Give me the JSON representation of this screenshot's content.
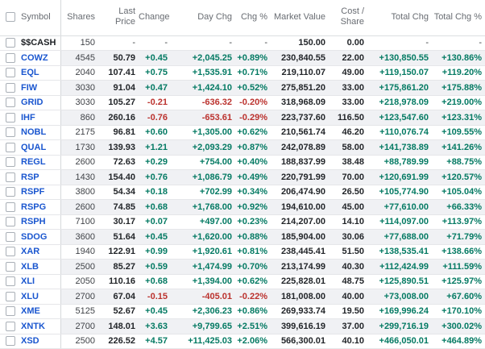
{
  "colors": {
    "positive": "#047a63",
    "negative": "#bb322e",
    "symbol_link": "#1a56cf",
    "row_stripe": "#f0f1f4",
    "header_text": "#686c72"
  },
  "table": {
    "header": {
      "symbol": "Symbol",
      "shares": "Shares",
      "last_price_line1": "Last",
      "last_price_line2": "Price",
      "change": "Change",
      "day_chg": "Day Chg",
      "chg_pct": "Chg %",
      "market_value": "Market Value",
      "cost_share_line1": "Cost /",
      "cost_share_line2": "Share",
      "total_chg": "Total Chg",
      "total_chg_pct": "Total Chg %"
    },
    "rows": [
      {
        "symbol": "$$CASH",
        "is_cash": true,
        "shares": "150",
        "last_price": "-",
        "change": "-",
        "day_chg": "-",
        "chg_pct": "-",
        "market_value": "150.00",
        "cost_share": "0.00",
        "total_chg": "-",
        "total_chg_pct": "-"
      },
      {
        "symbol": "COWZ",
        "shares": "4545",
        "last_price": "50.79",
        "change": "+0.45",
        "day_chg": "+2,045.25",
        "chg_pct": "+0.89%",
        "market_value": "230,840.55",
        "cost_share": "22.00",
        "total_chg": "+130,850.55",
        "total_chg_pct": "+130.86%"
      },
      {
        "symbol": "EQL",
        "shares": "2040",
        "last_price": "107.41",
        "change": "+0.75",
        "day_chg": "+1,535.91",
        "chg_pct": "+0.71%",
        "market_value": "219,110.07",
        "cost_share": "49.00",
        "total_chg": "+119,150.07",
        "total_chg_pct": "+119.20%"
      },
      {
        "symbol": "FIW",
        "shares": "3030",
        "last_price": "91.04",
        "change": "+0.47",
        "day_chg": "+1,424.10",
        "chg_pct": "+0.52%",
        "market_value": "275,851.20",
        "cost_share": "33.00",
        "total_chg": "+175,861.20",
        "total_chg_pct": "+175.88%"
      },
      {
        "symbol": "GRID",
        "shares": "3030",
        "last_price": "105.27",
        "change": "-0.21",
        "day_chg": "-636.32",
        "chg_pct": "-0.20%",
        "market_value": "318,968.09",
        "cost_share": "33.00",
        "total_chg": "+218,978.09",
        "total_chg_pct": "+219.00%"
      },
      {
        "symbol": "IHF",
        "shares": "860",
        "last_price": "260.16",
        "change": "-0.76",
        "day_chg": "-653.61",
        "chg_pct": "-0.29%",
        "market_value": "223,737.60",
        "cost_share": "116.50",
        "total_chg": "+123,547.60",
        "total_chg_pct": "+123.31%"
      },
      {
        "symbol": "NOBL",
        "shares": "2175",
        "last_price": "96.81",
        "change": "+0.60",
        "day_chg": "+1,305.00",
        "chg_pct": "+0.62%",
        "market_value": "210,561.74",
        "cost_share": "46.20",
        "total_chg": "+110,076.74",
        "total_chg_pct": "+109.55%"
      },
      {
        "symbol": "QUAL",
        "shares": "1730",
        "last_price": "139.93",
        "change": "+1.21",
        "day_chg": "+2,093.29",
        "chg_pct": "+0.87%",
        "market_value": "242,078.89",
        "cost_share": "58.00",
        "total_chg": "+141,738.89",
        "total_chg_pct": "+141.26%"
      },
      {
        "symbol": "REGL",
        "shares": "2600",
        "last_price": "72.63",
        "change": "+0.29",
        "day_chg": "+754.00",
        "chg_pct": "+0.40%",
        "market_value": "188,837.99",
        "cost_share": "38.48",
        "total_chg": "+88,789.99",
        "total_chg_pct": "+88.75%"
      },
      {
        "symbol": "RSP",
        "shares": "1430",
        "last_price": "154.40",
        "change": "+0.76",
        "day_chg": "+1,086.79",
        "chg_pct": "+0.49%",
        "market_value": "220,791.99",
        "cost_share": "70.00",
        "total_chg": "+120,691.99",
        "total_chg_pct": "+120.57%"
      },
      {
        "symbol": "RSPF",
        "shares": "3800",
        "last_price": "54.34",
        "change": "+0.18",
        "day_chg": "+702.99",
        "chg_pct": "+0.34%",
        "market_value": "206,474.90",
        "cost_share": "26.50",
        "total_chg": "+105,774.90",
        "total_chg_pct": "+105.04%"
      },
      {
        "symbol": "RSPG",
        "shares": "2600",
        "last_price": "74.85",
        "change": "+0.68",
        "day_chg": "+1,768.00",
        "chg_pct": "+0.92%",
        "market_value": "194,610.00",
        "cost_share": "45.00",
        "total_chg": "+77,610.00",
        "total_chg_pct": "+66.33%"
      },
      {
        "symbol": "RSPH",
        "shares": "7100",
        "last_price": "30.17",
        "change": "+0.07",
        "day_chg": "+497.00",
        "chg_pct": "+0.23%",
        "market_value": "214,207.00",
        "cost_share": "14.10",
        "total_chg": "+114,097.00",
        "total_chg_pct": "+113.97%"
      },
      {
        "symbol": "SDOG",
        "shares": "3600",
        "last_price": "51.64",
        "change": "+0.45",
        "day_chg": "+1,620.00",
        "chg_pct": "+0.88%",
        "market_value": "185,904.00",
        "cost_share": "30.06",
        "total_chg": "+77,688.00",
        "total_chg_pct": "+71.79%"
      },
      {
        "symbol": "XAR",
        "shares": "1940",
        "last_price": "122.91",
        "change": "+0.99",
        "day_chg": "+1,920.61",
        "chg_pct": "+0.81%",
        "market_value": "238,445.41",
        "cost_share": "51.50",
        "total_chg": "+138,535.41",
        "total_chg_pct": "+138.66%"
      },
      {
        "symbol": "XLB",
        "shares": "2500",
        "last_price": "85.27",
        "change": "+0.59",
        "day_chg": "+1,474.99",
        "chg_pct": "+0.70%",
        "market_value": "213,174.99",
        "cost_share": "40.30",
        "total_chg": "+112,424.99",
        "total_chg_pct": "+111.59%"
      },
      {
        "symbol": "XLI",
        "shares": "2050",
        "last_price": "110.16",
        "change": "+0.68",
        "day_chg": "+1,394.00",
        "chg_pct": "+0.62%",
        "market_value": "225,828.01",
        "cost_share": "48.75",
        "total_chg": "+125,890.51",
        "total_chg_pct": "+125.97%"
      },
      {
        "symbol": "XLU",
        "shares": "2700",
        "last_price": "67.04",
        "change": "-0.15",
        "day_chg": "-405.01",
        "chg_pct": "-0.22%",
        "market_value": "181,008.00",
        "cost_share": "40.00",
        "total_chg": "+73,008.00",
        "total_chg_pct": "+67.60%"
      },
      {
        "symbol": "XME",
        "shares": "5125",
        "last_price": "52.67",
        "change": "+0.45",
        "day_chg": "+2,306.23",
        "chg_pct": "+0.86%",
        "market_value": "269,933.74",
        "cost_share": "19.50",
        "total_chg": "+169,996.24",
        "total_chg_pct": "+170.10%"
      },
      {
        "symbol": "XNTK",
        "shares": "2700",
        "last_price": "148.01",
        "change": "+3.63",
        "day_chg": "+9,799.65",
        "chg_pct": "+2.51%",
        "market_value": "399,616.19",
        "cost_share": "37.00",
        "total_chg": "+299,716.19",
        "total_chg_pct": "+300.02%"
      },
      {
        "symbol": "XSD",
        "shares": "2500",
        "last_price": "226.52",
        "change": "+4.57",
        "day_chg": "+11,425.03",
        "chg_pct": "+2.06%",
        "market_value": "566,300.01",
        "cost_share": "40.10",
        "total_chg": "+466,050.01",
        "total_chg_pct": "+464.89%"
      }
    ]
  }
}
